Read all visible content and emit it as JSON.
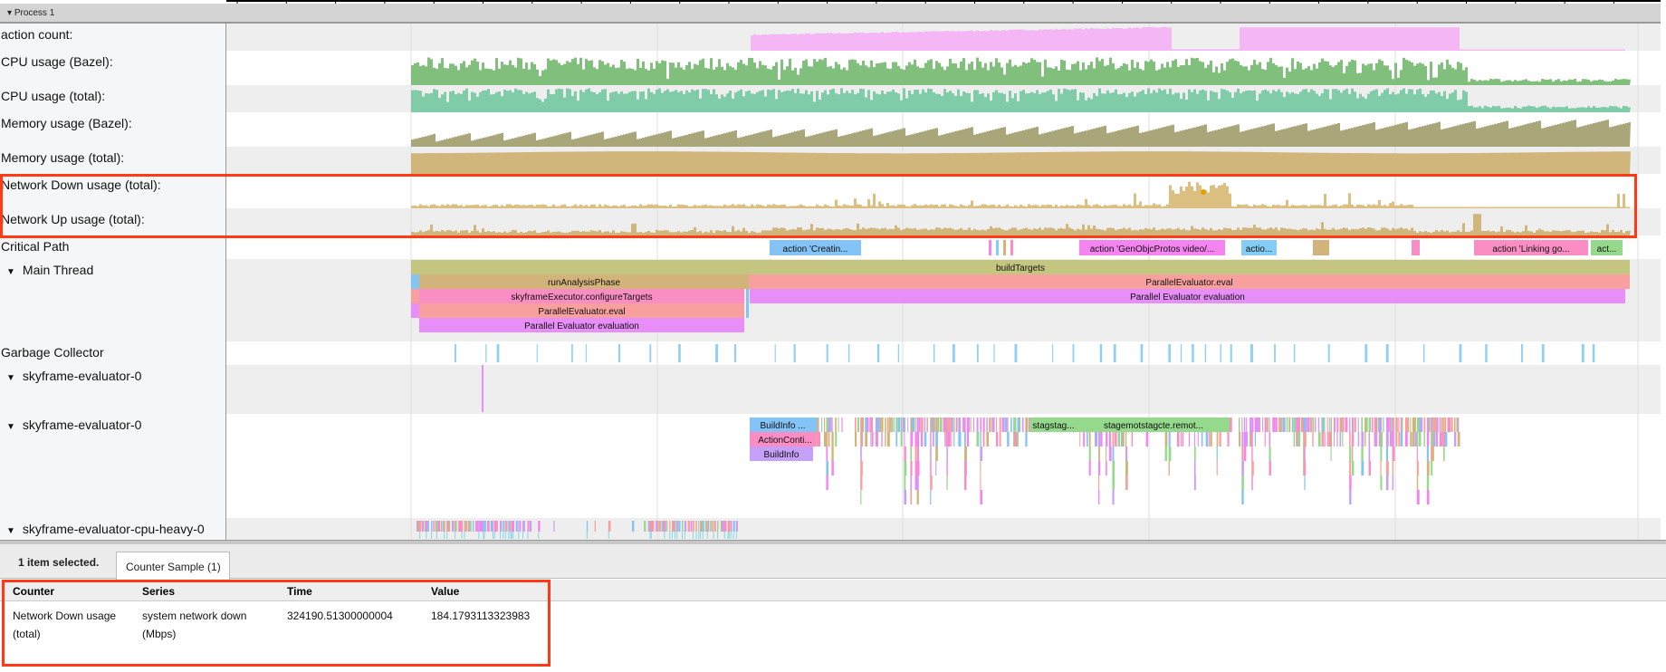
{
  "process_title": "Process 1",
  "tracks": [
    {
      "label": "action count:",
      "color": "#f4b6f4"
    },
    {
      "label": "CPU usage (Bazel):",
      "color": "#80bf7c"
    },
    {
      "label": "CPU usage (total):",
      "color": "#80cba8"
    },
    {
      "label": "Memory usage (Bazel):",
      "color": "#a9a67a"
    },
    {
      "label": "Memory usage (total):",
      "color": "#d1b67b"
    },
    {
      "label": "Network Down usage (total):",
      "color": "#dbbf80"
    },
    {
      "label": "Network Up usage (total):",
      "color": "#d1b67b"
    },
    {
      "label": "Critical Path"
    },
    {
      "label": "Main Thread"
    },
    {
      "label": "Garbage Collector"
    },
    {
      "label": "skyframe-evaluator-0"
    },
    {
      "label": "skyframe-evaluator-0"
    },
    {
      "label": "skyframe-evaluator-cpu-heavy-0"
    }
  ],
  "critical_path": [
    "action 'Creatin...",
    "action 'GenObjcProtos video/...",
    "actio...",
    "action 'Linking go...",
    "act..."
  ],
  "main_thread": [
    "buildTargets",
    "runAnalysisPhase",
    "ParallelEvaluator.eval",
    "skyframeExecutor.configureTargets",
    "Parallel Evaluator evaluation",
    "ParallelEvaluator.eval",
    "Parallel Evaluator evaluation"
  ],
  "evaluator": [
    "BuildInfo ...",
    "ActionConti...",
    "BuildInfo",
    "stagstag...",
    "stagemotstagcte.remot..."
  ],
  "panel": {
    "selection": "1 item selected.",
    "tab": "Counter Sample (1)",
    "columns": [
      "Counter",
      "Series",
      "Time",
      "Value"
    ],
    "row": [
      "Network Down usage (total)",
      "system network down (Mbps)",
      "324190.51300000004",
      "184.1793113323983"
    ]
  },
  "colors": {
    "highlight": "#ff3a14",
    "selected_marker": "#e0a000"
  }
}
